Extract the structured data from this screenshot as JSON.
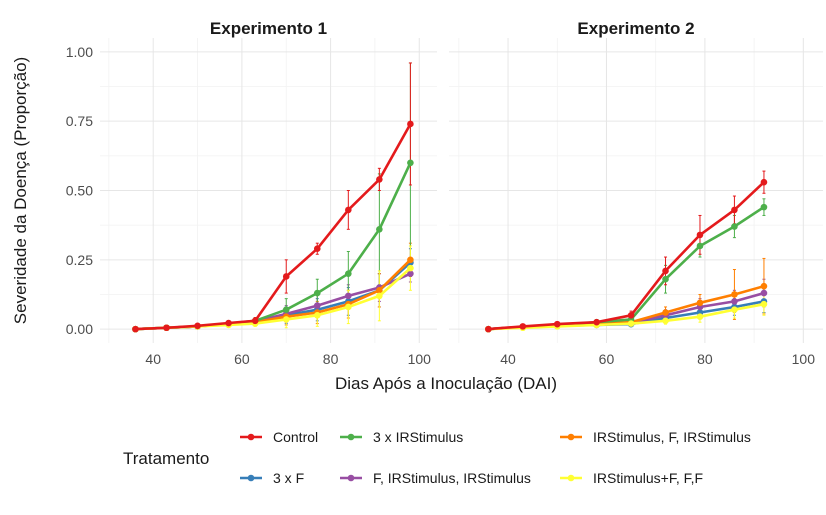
{
  "chart_data": {
    "type": "line",
    "xlabel": "Dias Após a Inoculação (DAI)",
    "ylabel": "Severidade da Doença (Proporção)",
    "xlim": [
      28,
      104
    ],
    "ylim": [
      -0.05,
      1.05
    ],
    "x_ticks": [
      40,
      60,
      80,
      100
    ],
    "y_ticks": [
      0.0,
      0.25,
      0.5,
      0.75,
      1.0
    ],
    "y_tick_labels": [
      "0.00",
      "0.25",
      "0.50",
      "0.75",
      "1.00"
    ],
    "grid": true,
    "legend_title": "Tratamento",
    "legend_position": "bottom",
    "colors": {
      "Control": "#E41A1C",
      "3 x IRStimulus": "#4DAF4A",
      "IRStimulus, F, IRStimulus": "#FF7F00",
      "3 x F": "#377EB8",
      "F, IRStimulus, IRStimulus": "#984EA3",
      "IRStimulus+F, F,F": "#FFFF33"
    },
    "legend_order": [
      "Control",
      "3 x IRStimulus",
      "IRStimulus, F, IRStimulus",
      "3 x F",
      "F, IRStimulus, IRStimulus",
      "IRStimulus+F, F,F"
    ],
    "panels": [
      {
        "title": "Experimento 1",
        "x": [
          36,
          43,
          50,
          57,
          63,
          70,
          77,
          84,
          91,
          98
        ],
        "series": [
          {
            "name": "3 x F",
            "values": [
              0.0,
              0.005,
              0.01,
              0.018,
              0.025,
              0.05,
              0.07,
              0.1,
              0.14,
              0.24
            ],
            "errors": [
              0.003,
              0.004,
              0.005,
              0.007,
              0.01,
              0.03,
              0.04,
              0.05,
              0.06,
              0.05
            ]
          },
          {
            "name": "F, IRStimulus, IRStimulus",
            "values": [
              0.0,
              0.005,
              0.01,
              0.02,
              0.028,
              0.055,
              0.085,
              0.12,
              0.15,
              0.2
            ],
            "errors": [
              0.003,
              0.004,
              0.005,
              0.008,
              0.01,
              0.03,
              0.04,
              0.04,
              0.05,
              0.03
            ]
          },
          {
            "name": "IRStimulus, F, IRStimulus",
            "values": [
              0.0,
              0.005,
              0.01,
              0.018,
              0.025,
              0.045,
              0.06,
              0.09,
              0.14,
              0.25
            ],
            "errors": [
              0.003,
              0.004,
              0.005,
              0.007,
              0.01,
              0.03,
              0.04,
              0.05,
              0.06,
              0.06
            ]
          },
          {
            "name": "3 x IRStimulus",
            "values": [
              0.0,
              0.005,
              0.01,
              0.02,
              0.03,
              0.07,
              0.13,
              0.2,
              0.36,
              0.6
            ],
            "errors": [
              0.003,
              0.004,
              0.005,
              0.007,
              0.012,
              0.04,
              0.05,
              0.08,
              0.2,
              0.36
            ]
          },
          {
            "name": "IRStimulus+F, F,F",
            "values": [
              0.0,
              0.005,
              0.01,
              0.015,
              0.02,
              0.035,
              0.05,
              0.08,
              0.12,
              0.22
            ],
            "errors": [
              0.003,
              0.004,
              0.005,
              0.006,
              0.01,
              0.03,
              0.04,
              0.06,
              0.09,
              0.08
            ]
          },
          {
            "name": "Control",
            "values": [
              0.0,
              0.005,
              0.012,
              0.022,
              0.03,
              0.19,
              0.29,
              0.43,
              0.54,
              0.74
            ],
            "errors": [
              0.003,
              0.004,
              0.006,
              0.008,
              0.012,
              0.06,
              0.02,
              0.07,
              0.04,
              0.22
            ]
          }
        ]
      },
      {
        "title": "Experimento 2",
        "x": [
          36,
          43,
          50,
          58,
          65,
          72,
          79,
          86,
          92
        ],
        "series": [
          {
            "name": "3 x F",
            "values": [
              0.0,
              0.008,
              0.012,
              0.015,
              0.018,
              0.04,
              0.06,
              0.08,
              0.1
            ],
            "errors": [
              0.003,
              0.004,
              0.005,
              0.006,
              0.008,
              0.015,
              0.02,
              0.03,
              0.04
            ]
          },
          {
            "name": "F, IRStimulus, IRStimulus",
            "values": [
              0.0,
              0.008,
              0.012,
              0.018,
              0.022,
              0.05,
              0.08,
              0.1,
              0.13
            ],
            "errors": [
              0.003,
              0.004,
              0.005,
              0.006,
              0.008,
              0.02,
              0.03,
              0.04,
              0.05
            ]
          },
          {
            "name": "IRStimulus, F, IRStimulus",
            "values": [
              0.0,
              0.008,
              0.012,
              0.02,
              0.025,
              0.06,
              0.095,
              0.125,
              0.155
            ],
            "errors": [
              0.003,
              0.004,
              0.005,
              0.006,
              0.008,
              0.02,
              0.03,
              0.09,
              0.1
            ]
          },
          {
            "name": "3 x IRStimulus",
            "values": [
              0.0,
              0.008,
              0.015,
              0.025,
              0.035,
              0.18,
              0.3,
              0.37,
              0.44
            ],
            "errors": [
              0.003,
              0.004,
              0.006,
              0.008,
              0.01,
              0.05,
              0.04,
              0.04,
              0.03
            ]
          },
          {
            "name": "IRStimulus+F, F,F",
            "values": [
              0.0,
              0.005,
              0.01,
              0.015,
              0.02,
              0.03,
              0.045,
              0.07,
              0.09
            ],
            "errors": [
              0.003,
              0.004,
              0.005,
              0.006,
              0.008,
              0.012,
              0.02,
              0.03,
              0.04
            ]
          },
          {
            "name": "Control",
            "values": [
              0.0,
              0.01,
              0.018,
              0.025,
              0.05,
              0.21,
              0.34,
              0.43,
              0.53
            ],
            "errors": [
              0.003,
              0.005,
              0.006,
              0.008,
              0.015,
              0.05,
              0.07,
              0.05,
              0.04
            ]
          }
        ]
      }
    ]
  }
}
